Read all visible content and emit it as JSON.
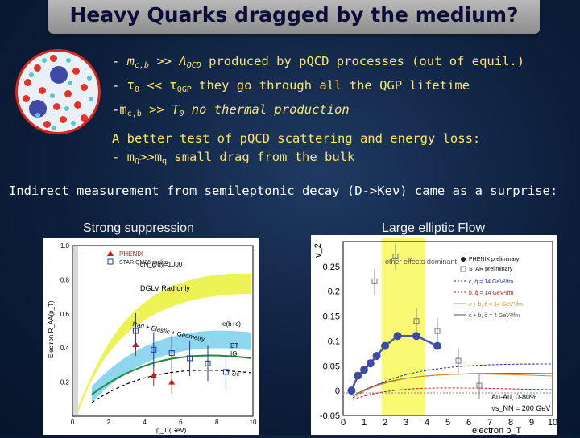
{
  "title": "Heavy Quarks dragged by the medium?",
  "bullets": {
    "b1_prefix": "- ",
    "b1_m": "m",
    "b1_sub": "c,b",
    "b1_gg": " >> ",
    "b1_lambda": "Λ",
    "b1_qcd": "QCD",
    "b1_rest": " produced by pQCD processes (out of equil.)",
    "b2_prefix": "- ",
    "b2_tau": "τ",
    "b2_sub0": "0",
    "b2_ll": " << ",
    "b2_tau2": "τ",
    "b2_qgp": "QGP",
    "b2_rest": " they go through all the QGP lifetime",
    "b3_prefix": "-",
    "b3_m": "m",
    "b3_sub": "c,b",
    "b3_gg": " >> T",
    "b3_sub0": "0",
    "b3_rest": "  no thermal production"
  },
  "middle": {
    "line1": "A better test of pQCD scattering and energy loss:",
    "line2_prefix": "- m",
    "line2_subQ": "Q",
    "line2_mid": ">>m",
    "line2_subq": "q",
    "line2_rest": " small drag from the bulk"
  },
  "indirect": "Indirect measurement from semileptonic decay (D->Keν) came as a surprise:",
  "left_caption": "Strong suppression",
  "right_caption": "Large elliptic Flow",
  "chart_data": [
    {
      "type": "scatter",
      "xlabel": "p_T (GeV)",
      "ylabel": "Electron R_AA(p_T)",
      "xlim": [
        0,
        10
      ],
      "ylim": [
        0,
        1.0
      ],
      "xticks": [
        "0",
        "2",
        "4",
        "6",
        "8",
        "10"
      ],
      "yticks": [
        "1.0",
        "0.8",
        "0.6",
        "0.4",
        "0.2"
      ],
      "legend": [
        "PHENIX",
        "STAR QM05 prelim"
      ],
      "annotations": [
        "dN_g/dy=1000",
        "DGLV Rad only",
        "Rad + Elastic + Geometry",
        "e(b+c)",
        "BT",
        "IG",
        "c/c"
      ],
      "series": [
        {
          "name": "PHENIX",
          "x": [
            3.5,
            4.5,
            5.5
          ],
          "y": [
            0.42,
            0.24,
            0.2
          ]
        },
        {
          "name": "STAR QM05 prelim",
          "x": [
            3.5,
            4.5,
            5.5,
            6.5,
            7.5,
            8.5
          ],
          "y": [
            0.5,
            0.39,
            0.37,
            0.34,
            0.31,
            0.26
          ]
        }
      ]
    },
    {
      "type": "scatter",
      "xlabel": "electron p_T",
      "ylabel": "v_2",
      "xlim": [
        0,
        10
      ],
      "ylim": [
        -0.05,
        0.3
      ],
      "xticks": [
        "0",
        "1",
        "2",
        "3",
        "4",
        "5",
        "6",
        "7",
        "8",
        "9",
        "10"
      ],
      "yticks": [
        "0.25",
        "0.2",
        "0.15",
        "0.1",
        "0.05",
        "0",
        "-0.05"
      ],
      "legend": [
        "PHENIX preliminary",
        "STAR preliminary",
        "c, q̂ = 14 GeV²/fm",
        "b, q̂ = 14 GeV²/fm",
        "c + b, q̂ = 14 GeV²/fm",
        "c + b, q̂ = 4 GeV²/fm"
      ],
      "annotations": [
        "other effects dominant",
        "Au-Au, 0-80%",
        "√s_NN = 200 GeV"
      ],
      "series": [
        {
          "name": "PHENIX preliminary",
          "x": [
            0.4,
            0.7,
            1.0,
            1.3,
            1.6,
            2.0,
            2.6,
            3.5,
            4.5
          ],
          "y": [
            0.0,
            0.03,
            0.042,
            0.055,
            0.07,
            0.09,
            0.11,
            0.11,
            0.09
          ]
        },
        {
          "name": "STAR preliminary",
          "x": [
            1.5,
            2.5,
            3.5,
            4.5,
            5.5,
            6.5
          ],
          "y": [
            0.22,
            0.27,
            0.14,
            0.12,
            0.06,
            0.01
          ]
        }
      ]
    }
  ]
}
